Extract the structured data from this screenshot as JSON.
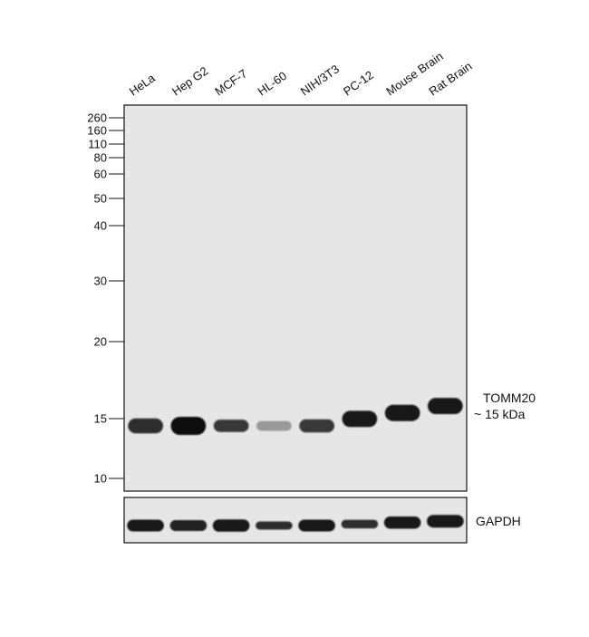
{
  "lanes": [
    {
      "label": "HeLa",
      "main_intensity": 0.85,
      "main_thickness": 0.75,
      "main_shift": 0.0,
      "gapdh_intensity": 0.95,
      "gapdh_thickness": 0.9
    },
    {
      "label": "Hep G2",
      "main_intensity": 1.0,
      "main_thickness": 1.0,
      "main_shift": 0.0,
      "gapdh_intensity": 0.9,
      "gapdh_thickness": 0.8
    },
    {
      "label": "MCF-7",
      "main_intensity": 0.8,
      "main_thickness": 0.55,
      "main_shift": 0.0,
      "gapdh_intensity": 0.95,
      "gapdh_thickness": 0.95
    },
    {
      "label": "HL-60",
      "main_intensity": 0.35,
      "main_thickness": 0.35,
      "main_shift": 0.0,
      "gapdh_intensity": 0.85,
      "gapdh_thickness": 0.5
    },
    {
      "label": "NIH/3T3",
      "main_intensity": 0.8,
      "main_thickness": 0.6,
      "main_shift": 0.0,
      "gapdh_intensity": 0.95,
      "gapdh_thickness": 0.9
    },
    {
      "label": "PC-12",
      "main_intensity": 0.95,
      "main_thickness": 0.85,
      "main_shift": 0.35,
      "gapdh_intensity": 0.85,
      "gapdh_thickness": 0.55
    },
    {
      "label": "Mouse Brain",
      "main_intensity": 0.95,
      "main_thickness": 0.85,
      "main_shift": 0.65,
      "gapdh_intensity": 0.95,
      "gapdh_thickness": 0.95
    },
    {
      "label": "Rat Brain",
      "main_intensity": 0.95,
      "main_thickness": 0.85,
      "main_shift": 1.0,
      "gapdh_intensity": 0.95,
      "gapdh_thickness": 1.0
    }
  ],
  "mw_markers": [
    "260",
    "160",
    "110",
    "80",
    "60",
    "50",
    "40",
    "30",
    "20",
    "15",
    "10"
  ],
  "target_name": "TOMM20",
  "target_size": "~ 15 kDa",
  "loading_control": "GAPDH",
  "colors": {
    "membrane": "#e6e6e6",
    "band": "#0d0d0d",
    "border": "#111111"
  }
}
